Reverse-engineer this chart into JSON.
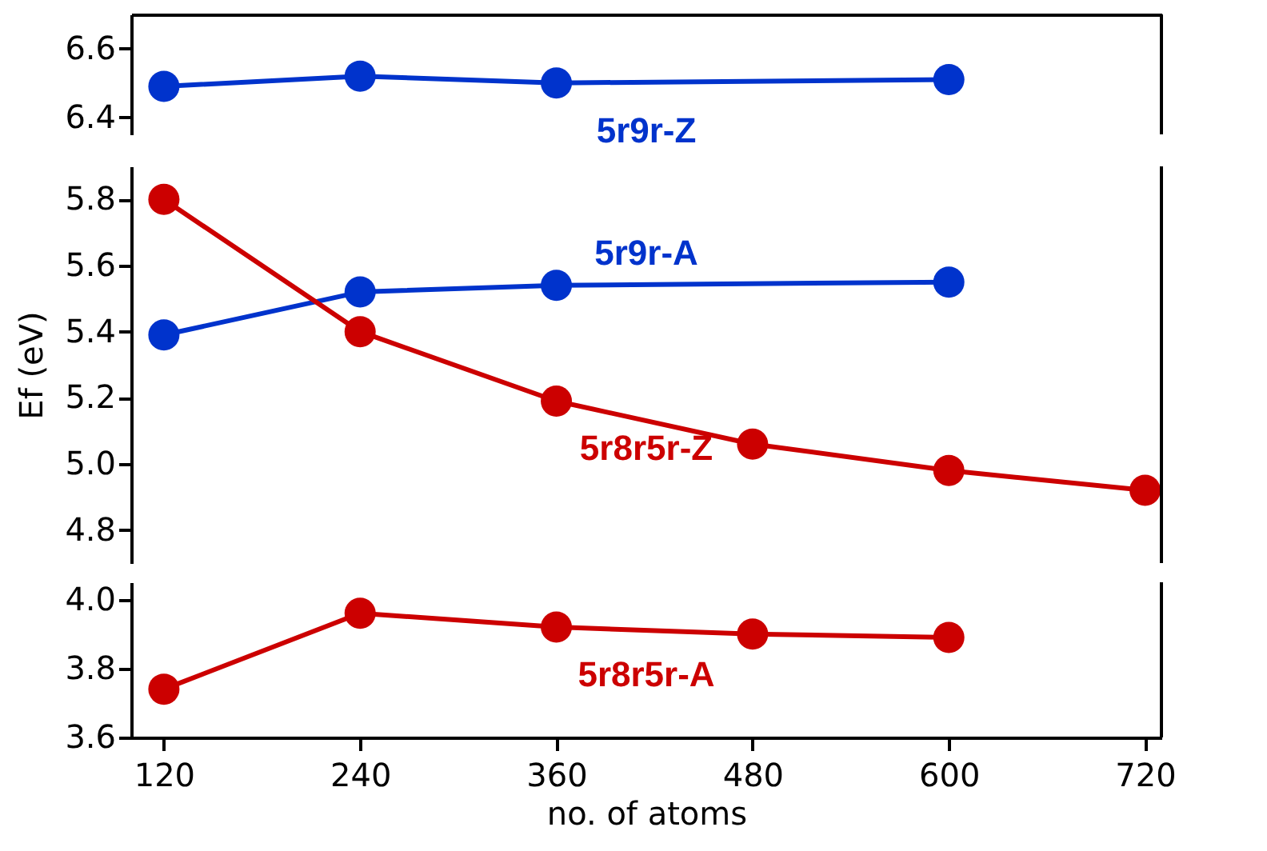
{
  "chart_data": [
    {
      "type": "line",
      "xlim": [
        100,
        730
      ],
      "xticks": [
        120,
        240,
        360,
        480,
        600,
        720
      ],
      "ylim": [
        6.35,
        6.7
      ],
      "yticks": [
        6.4,
        6.6
      ],
      "tick_labels": "y",
      "marker": "circle",
      "grid": false,
      "series": [
        {
          "name": "5r9r-Z",
          "color": "#0033cc",
          "x": [
            120,
            240,
            360,
            600
          ],
          "values": [
            6.49,
            6.52,
            6.5,
            6.51
          ]
        }
      ]
    },
    {
      "type": "line",
      "xlim": [
        100,
        730
      ],
      "xticks": [
        120,
        240,
        360,
        480,
        600,
        720
      ],
      "ylim": [
        4.7,
        5.9
      ],
      "yticks": [
        4.8,
        {
          "value": 5,
          "label": "5.0"
        },
        5.2,
        5.4,
        5.6,
        5.8
      ],
      "tick_labels": "y",
      "marker": "circle",
      "grid": false,
      "ylabel": "Ef (eV)",
      "series": [
        {
          "name": "5r9r-A",
          "color": "#0033cc",
          "x": [
            120,
            240,
            360,
            600
          ],
          "values": [
            5.39,
            5.52,
            5.54,
            5.55
          ]
        },
        {
          "name": "5r8r5r-Z",
          "color": "#cc0000",
          "x": [
            120,
            240,
            360,
            480,
            600,
            720
          ],
          "values": [
            5.8,
            5.4,
            5.19,
            5.06,
            4.98,
            4.92
          ]
        }
      ]
    },
    {
      "type": "line",
      "xlim": [
        100,
        730
      ],
      "xticks": [
        120,
        240,
        360,
        480,
        600,
        720
      ],
      "ylim": [
        3.6,
        4.05
      ],
      "yticks": [
        3.6,
        3.8,
        {
          "value": 4,
          "label": "4.0"
        }
      ],
      "marker": "circle",
      "grid": false,
      "xlabel": "no. of atoms",
      "series": [
        {
          "name": "5r8r5r-A",
          "color": "#cc0000",
          "x": [
            120,
            240,
            360,
            480,
            600
          ],
          "values": [
            3.74,
            3.96,
            3.92,
            3.9,
            3.89
          ]
        }
      ]
    }
  ]
}
